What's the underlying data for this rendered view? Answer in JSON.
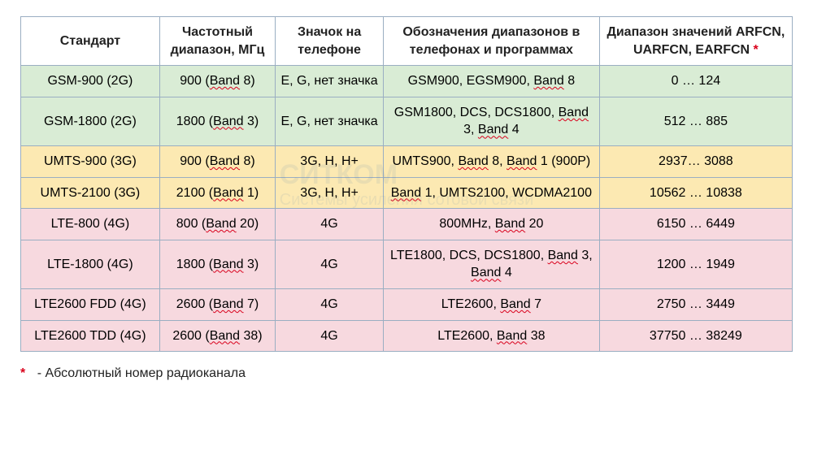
{
  "table": {
    "col_widths": [
      "18%",
      "15%",
      "14%",
      "28%",
      "25%"
    ],
    "header_bg": "#ffffff",
    "row_colors": {
      "green": "#d9ecd5",
      "yellow": "#fce9b2",
      "pink": "#f7d9df"
    },
    "border_color": "#9aaec2",
    "text_color": "#222222",
    "font_size": 16,
    "headers": [
      "Стандарт",
      "Частотный диапазон, МГц",
      "Значок на телефоне",
      "Обозначения диапазонов в телефонах и программах",
      "Диапазон значений ARFCN, UARFCN, EARFCN *"
    ],
    "rows": [
      {
        "color": "green",
        "cells": [
          [
            {
              "t": "GSM-900 (2G)"
            }
          ],
          [
            {
              "t": "900 ("
            },
            {
              "t": "Band",
              "wavy": true
            },
            {
              "t": " 8)"
            }
          ],
          [
            {
              "t": "E, G, нет значка"
            }
          ],
          [
            {
              "t": "GSM900, EGSM900, "
            },
            {
              "t": "Band",
              "wavy": true
            },
            {
              "t": " 8"
            }
          ],
          [
            {
              "t": "0 … 124"
            }
          ]
        ]
      },
      {
        "color": "green",
        "cells": [
          [
            {
              "t": "GSM-1800 (2G)"
            }
          ],
          [
            {
              "t": "1800 ("
            },
            {
              "t": "Band",
              "wavy": true
            },
            {
              "t": " 3)"
            }
          ],
          [
            {
              "t": "E, G, нет значка"
            }
          ],
          [
            {
              "t": "GSM1800, DCS,  DCS1800, "
            },
            {
              "t": "Band",
              "wavy": true
            },
            {
              "t": " 3, "
            },
            {
              "t": "Band",
              "wavy": true
            },
            {
              "t": " 4"
            }
          ],
          [
            {
              "t": "512 … 885"
            }
          ]
        ]
      },
      {
        "color": "yellow",
        "cells": [
          [
            {
              "t": "UMTS-900 (3G)"
            }
          ],
          [
            {
              "t": "900 ("
            },
            {
              "t": "Band",
              "wavy": true
            },
            {
              "t": " 8)"
            }
          ],
          [
            {
              "t": "3G, H, H+"
            }
          ],
          [
            {
              "t": "UMTS900, "
            },
            {
              "t": "Band",
              "wavy": true
            },
            {
              "t": " 8, "
            },
            {
              "t": "Band",
              "wavy": true
            },
            {
              "t": " 1 (900P)"
            }
          ],
          [
            {
              "t": "2937… 3088"
            }
          ]
        ]
      },
      {
        "color": "yellow",
        "cells": [
          [
            {
              "t": "UMTS-2100 (3G)"
            }
          ],
          [
            {
              "t": "2100 ("
            },
            {
              "t": "Band",
              "wavy": true
            },
            {
              "t": " 1)"
            }
          ],
          [
            {
              "t": "3G, H, H+"
            }
          ],
          [
            {
              "t": "Band",
              "wavy": true
            },
            {
              "t": " 1, UMTS2100, WCDMA2100"
            }
          ],
          [
            {
              "t": "10562 … 10838"
            }
          ]
        ]
      },
      {
        "color": "pink",
        "cells": [
          [
            {
              "t": "LTE-800 (4G)"
            }
          ],
          [
            {
              "t": "800 ("
            },
            {
              "t": "Band",
              "wavy": true
            },
            {
              "t": " 20)"
            }
          ],
          [
            {
              "t": "4G"
            }
          ],
          [
            {
              "t": "800MHz, "
            },
            {
              "t": "Band",
              "wavy": true
            },
            {
              "t": " 20"
            }
          ],
          [
            {
              "t": "6150 … 6449"
            }
          ]
        ]
      },
      {
        "color": "pink",
        "cells": [
          [
            {
              "t": "LTE-1800 (4G)"
            }
          ],
          [
            {
              "t": "1800 ("
            },
            {
              "t": "Band",
              "wavy": true
            },
            {
              "t": " 3)"
            }
          ],
          [
            {
              "t": "4G"
            }
          ],
          [
            {
              "t": "LTE1800, DCS, DCS1800, "
            },
            {
              "t": "Band",
              "wavy": true
            },
            {
              "t": " 3, "
            },
            {
              "t": "Band",
              "wavy": true
            },
            {
              "t": " 4"
            }
          ],
          [
            {
              "t": "1200 … 1949"
            }
          ]
        ]
      },
      {
        "color": "pink",
        "cells": [
          [
            {
              "t": "LTE2600 FDD (4G)"
            }
          ],
          [
            {
              "t": "2600 ("
            },
            {
              "t": "Band",
              "wavy": true
            },
            {
              "t": " 7)"
            }
          ],
          [
            {
              "t": "4G"
            }
          ],
          [
            {
              "t": "LTE2600, "
            },
            {
              "t": "Band",
              "wavy": true
            },
            {
              "t": " 7"
            }
          ],
          [
            {
              "t": "2750 … 3449"
            }
          ]
        ]
      },
      {
        "color": "pink",
        "cells": [
          [
            {
              "t": "LTE2600 TDD (4G)"
            }
          ],
          [
            {
              "t": "2600 ("
            },
            {
              "t": "Band",
              "wavy": true
            },
            {
              "t": " 38)"
            }
          ],
          [
            {
              "t": "4G"
            }
          ],
          [
            {
              "t": "LTE2600, "
            },
            {
              "t": "Band",
              "wavy": true
            },
            {
              "t": " 38"
            }
          ],
          [
            {
              "t": "37750 … 38249"
            }
          ]
        ]
      }
    ]
  },
  "footnote": {
    "marker": "*",
    "text": "-  Абсолютный номер радиоканала"
  },
  "watermark": {
    "line1": "СИТКОМ",
    "line2": "Системы усиления сотовой связи",
    "color": "rgba(70,120,180,0.10)"
  }
}
